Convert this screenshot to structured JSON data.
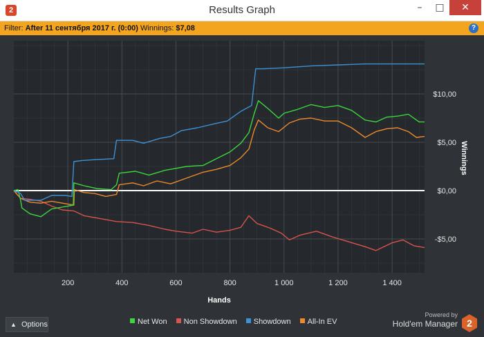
{
  "window": {
    "title": "Results Graph",
    "app_icon": "2",
    "buttons": {
      "minimize": "–",
      "maximize": "□",
      "close": "✕"
    }
  },
  "filter_bar": {
    "filter_label": "Filter:",
    "filter_value": "After 11 сентября 2017 г. (0:00)",
    "winnings_label": "Winnings:",
    "winnings_value": "$7,08",
    "help_icon": "?"
  },
  "colors": {
    "net_won": "#3ed63e",
    "non_showdown": "#d9534f",
    "showdown": "#3c92d6",
    "all_in_ev": "#ef8a2c",
    "zero_line": "#ffffff",
    "grid": "#474c51",
    "plot_bg": "#25292d"
  },
  "chart_data": {
    "type": "line",
    "xlabel": "Hands",
    "ylabel": "Winnings",
    "xlim": [
      0,
      1520
    ],
    "ylim": [
      -8.5,
      15.5
    ],
    "x_ticks": [
      200,
      400,
      600,
      800,
      1000,
      1200,
      1400
    ],
    "x_tick_labels": [
      "200",
      "400",
      "600",
      "800",
      "1 000",
      "1 200",
      "1 400"
    ],
    "y_ticks": [
      10,
      5,
      0,
      -5
    ],
    "y_tick_labels": [
      "$10,00",
      "$5,00",
      "$0,00",
      "-$5,00"
    ],
    "grid": true,
    "legend_position": "bottom",
    "series": [
      {
        "name": "Net Won",
        "color_key": "net_won",
        "points": [
          [
            0,
            0
          ],
          [
            15,
            0.1
          ],
          [
            25,
            -1
          ],
          [
            30,
            -1.8
          ],
          [
            60,
            -2.4
          ],
          [
            100,
            -2.7
          ],
          [
            140,
            -1.9
          ],
          [
            200,
            -1.6
          ],
          [
            220,
            -1.5
          ],
          [
            222,
            0.8
          ],
          [
            260,
            0.5
          ],
          [
            310,
            0.2
          ],
          [
            360,
            0.1
          ],
          [
            380,
            0.6
          ],
          [
            390,
            1.8
          ],
          [
            450,
            2
          ],
          [
            500,
            1.6
          ],
          [
            560,
            2.1
          ],
          [
            600,
            2.3
          ],
          [
            640,
            2.5
          ],
          [
            700,
            2.6
          ],
          [
            750,
            3.3
          ],
          [
            800,
            4.0
          ],
          [
            840,
            4.9
          ],
          [
            870,
            6.0
          ],
          [
            890,
            8.0
          ],
          [
            905,
            9.3
          ],
          [
            940,
            8.5
          ],
          [
            980,
            7.5
          ],
          [
            1000,
            8.0
          ],
          [
            1050,
            8.4
          ],
          [
            1100,
            8.9
          ],
          [
            1150,
            8.6
          ],
          [
            1200,
            8.8
          ],
          [
            1250,
            8.3
          ],
          [
            1300,
            7.3
          ],
          [
            1340,
            7.1
          ],
          [
            1380,
            7.6
          ],
          [
            1420,
            7.7
          ],
          [
            1460,
            7.9
          ],
          [
            1500,
            7.1
          ],
          [
            1520,
            7.1
          ]
        ]
      },
      {
        "name": "Non Showdown",
        "color_key": "non_showdown",
        "points": [
          [
            0,
            0
          ],
          [
            25,
            -0.8
          ],
          [
            60,
            -0.9
          ],
          [
            100,
            -1.1
          ],
          [
            140,
            -1.6
          ],
          [
            180,
            -2.0
          ],
          [
            222,
            -2.1
          ],
          [
            260,
            -2.6
          ],
          [
            320,
            -2.9
          ],
          [
            380,
            -3.2
          ],
          [
            440,
            -3.3
          ],
          [
            500,
            -3.6
          ],
          [
            560,
            -4.0
          ],
          [
            600,
            -4.2
          ],
          [
            660,
            -4.4
          ],
          [
            700,
            -4.0
          ],
          [
            750,
            -4.3
          ],
          [
            800,
            -4.1
          ],
          [
            840,
            -3.8
          ],
          [
            870,
            -2.6
          ],
          [
            900,
            -3.4
          ],
          [
            950,
            -3.9
          ],
          [
            990,
            -4.4
          ],
          [
            1020,
            -5.1
          ],
          [
            1060,
            -4.6
          ],
          [
            1120,
            -4.2
          ],
          [
            1180,
            -4.8
          ],
          [
            1240,
            -5.3
          ],
          [
            1300,
            -5.8
          ],
          [
            1340,
            -6.2
          ],
          [
            1400,
            -5.4
          ],
          [
            1440,
            -5.1
          ],
          [
            1480,
            -5.7
          ],
          [
            1520,
            -5.9
          ]
        ]
      },
      {
        "name": "Showdown",
        "color_key": "showdown",
        "points": [
          [
            0,
            0
          ],
          [
            25,
            -0.3
          ],
          [
            40,
            -1.0
          ],
          [
            100,
            -1.0
          ],
          [
            140,
            -0.5
          ],
          [
            190,
            -0.5
          ],
          [
            215,
            -0.6
          ],
          [
            222,
            3.0
          ],
          [
            250,
            3.1
          ],
          [
            300,
            3.2
          ],
          [
            370,
            3.3
          ],
          [
            380,
            5.2
          ],
          [
            440,
            5.2
          ],
          [
            480,
            4.9
          ],
          [
            540,
            5.4
          ],
          [
            580,
            5.6
          ],
          [
            620,
            6.2
          ],
          [
            680,
            6.5
          ],
          [
            740,
            6.9
          ],
          [
            790,
            7.2
          ],
          [
            840,
            8.2
          ],
          [
            880,
            8.8
          ],
          [
            895,
            12.6
          ],
          [
            920,
            12.6
          ],
          [
            1000,
            12.7
          ],
          [
            1100,
            12.9
          ],
          [
            1200,
            13.0
          ],
          [
            1300,
            13.1
          ],
          [
            1400,
            13.1
          ],
          [
            1520,
            13.1
          ]
        ]
      },
      {
        "name": "All-In EV",
        "color_key": "all_in_ev",
        "points": [
          [
            0,
            0
          ],
          [
            25,
            -0.8
          ],
          [
            60,
            -1.2
          ],
          [
            100,
            -1.3
          ],
          [
            140,
            -1.1
          ],
          [
            200,
            -1.4
          ],
          [
            222,
            -1.5
          ],
          [
            224,
            0.1
          ],
          [
            260,
            -0.2
          ],
          [
            300,
            -0.3
          ],
          [
            340,
            -0.6
          ],
          [
            380,
            -0.4
          ],
          [
            390,
            0.6
          ],
          [
            440,
            0.8
          ],
          [
            480,
            0.5
          ],
          [
            530,
            1.0
          ],
          [
            580,
            0.7
          ],
          [
            620,
            1.1
          ],
          [
            660,
            1.5
          ],
          [
            700,
            1.9
          ],
          [
            750,
            2.2
          ],
          [
            800,
            2.6
          ],
          [
            840,
            3.4
          ],
          [
            870,
            4.3
          ],
          [
            890,
            6.3
          ],
          [
            905,
            7.3
          ],
          [
            940,
            6.5
          ],
          [
            980,
            6.1
          ],
          [
            1020,
            7.0
          ],
          [
            1060,
            7.4
          ],
          [
            1100,
            7.5
          ],
          [
            1150,
            7.2
          ],
          [
            1200,
            7.2
          ],
          [
            1250,
            6.5
          ],
          [
            1300,
            5.5
          ],
          [
            1340,
            6.1
          ],
          [
            1380,
            6.4
          ],
          [
            1420,
            6.5
          ],
          [
            1460,
            6.1
          ],
          [
            1490,
            5.5
          ],
          [
            1520,
            5.6
          ]
        ]
      }
    ]
  },
  "footer": {
    "options_label": "Options",
    "options_chevron": "▲",
    "legend": [
      {
        "label": "Net Won",
        "color_key": "net_won"
      },
      {
        "label": "Non Showdown",
        "color_key": "non_showdown"
      },
      {
        "label": "Showdown",
        "color_key": "showdown"
      },
      {
        "label": "All-In EV",
        "color_key": "all_in_ev"
      }
    ],
    "powered_by": "Powered by",
    "brand_name": "Hold'em Manager",
    "brand_logo": "2"
  }
}
